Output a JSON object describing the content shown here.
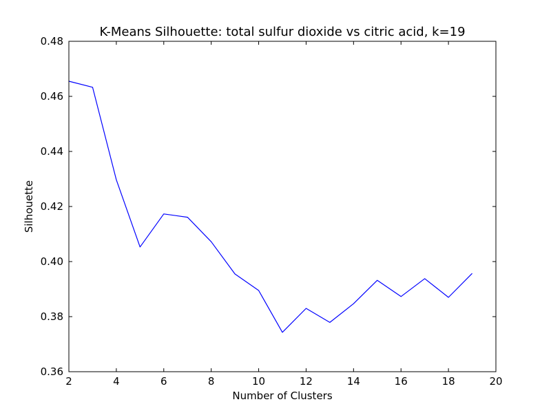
{
  "chart_data": {
    "type": "line",
    "title": "K-Means Silhouette: total sulfur dioxide vs citric acid, k=19",
    "xlabel": "Number of Clusters",
    "ylabel": "Silhouette",
    "xlim": [
      2,
      20
    ],
    "ylim": [
      0.36,
      0.48
    ],
    "xticks": [
      2,
      4,
      6,
      8,
      10,
      12,
      14,
      16,
      18,
      20
    ],
    "yticks": [
      0.36,
      0.38,
      0.4,
      0.42,
      0.44,
      0.46,
      0.48
    ],
    "xtick_labels": [
      "2",
      "4",
      "6",
      "8",
      "10",
      "12",
      "14",
      "16",
      "18",
      "20"
    ],
    "ytick_labels": [
      "0.36",
      "0.38",
      "0.40",
      "0.42",
      "0.44",
      "0.46",
      "0.48"
    ],
    "grid": false,
    "series": [
      {
        "color": "#0000ff",
        "x": [
          2,
          3,
          4,
          5,
          6,
          7,
          8,
          9,
          10,
          11,
          12,
          13,
          14,
          15,
          16,
          17,
          18,
          19
        ],
        "y": [
          0.4655,
          0.4633,
          0.4297,
          0.4053,
          0.4173,
          0.4161,
          0.4072,
          0.3955,
          0.3895,
          0.3743,
          0.383,
          0.3779,
          0.3847,
          0.3932,
          0.3873,
          0.3938,
          0.387,
          0.3957
        ]
      }
    ]
  }
}
